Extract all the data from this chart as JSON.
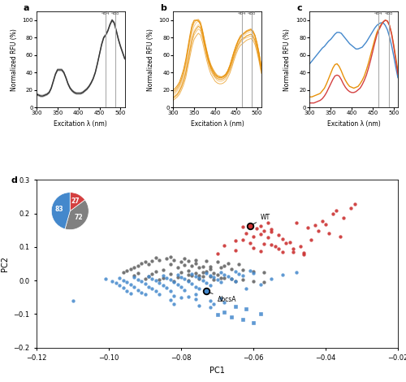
{
  "panel_a": {
    "x": [
      300,
      305,
      310,
      315,
      320,
      325,
      330,
      335,
      340,
      345,
      350,
      355,
      360,
      365,
      370,
      375,
      380,
      385,
      390,
      395,
      400,
      405,
      410,
      415,
      420,
      425,
      430,
      435,
      440,
      445,
      450,
      455,
      460,
      465,
      470,
      475,
      480,
      485,
      490,
      495,
      500,
      505,
      510
    ],
    "y_mean": [
      15,
      14,
      13,
      13,
      14,
      15,
      17,
      22,
      30,
      38,
      43,
      43,
      43,
      40,
      34,
      27,
      22,
      19,
      17,
      16,
      16,
      16,
      17,
      19,
      21,
      24,
      28,
      33,
      40,
      50,
      61,
      72,
      80,
      83,
      88,
      95,
      100,
      97,
      88,
      78,
      70,
      63,
      56
    ],
    "y_rep1": [
      14,
      13,
      12,
      12,
      13,
      14,
      16,
      21,
      29,
      37,
      42,
      42,
      42,
      39,
      33,
      26,
      21,
      18,
      16,
      15,
      15,
      15,
      16,
      18,
      20,
      23,
      27,
      32,
      39,
      49,
      60,
      71,
      79,
      82,
      87,
      94,
      99,
      96,
      87,
      77,
      69,
      62,
      55
    ],
    "y_rep2": [
      16,
      15,
      14,
      14,
      15,
      16,
      18,
      23,
      31,
      39,
      44,
      44,
      44,
      41,
      35,
      28,
      23,
      20,
      18,
      17,
      17,
      17,
      18,
      20,
      22,
      25,
      29,
      34,
      41,
      51,
      62,
      73,
      81,
      84,
      89,
      96,
      101,
      98,
      89,
      79,
      71,
      64,
      57
    ],
    "vline1": 464,
    "vline2": 488,
    "color": "#333333",
    "xlabel": "Excitation λ (nm)",
    "ylabel": "Normalized RFU (%)",
    "label": "a"
  },
  "panel_b": {
    "x": [
      300,
      305,
      310,
      315,
      320,
      325,
      330,
      335,
      340,
      345,
      350,
      355,
      360,
      365,
      370,
      375,
      380,
      385,
      390,
      395,
      400,
      405,
      410,
      415,
      420,
      425,
      430,
      435,
      440,
      445,
      450,
      455,
      460,
      465,
      470,
      475,
      480,
      485,
      490,
      495,
      500,
      505,
      510
    ],
    "curves": [
      [
        12,
        14,
        16,
        20,
        26,
        33,
        42,
        55,
        68,
        80,
        88,
        92,
        95,
        92,
        84,
        73,
        62,
        53,
        46,
        41,
        37,
        34,
        33,
        33,
        34,
        36,
        40,
        45,
        52,
        60,
        67,
        73,
        77,
        79,
        80,
        82,
        83,
        84,
        82,
        77,
        68,
        56,
        42
      ],
      [
        14,
        16,
        19,
        23,
        29,
        37,
        47,
        61,
        74,
        86,
        93,
        97,
        99,
        96,
        87,
        75,
        64,
        55,
        47,
        42,
        38,
        36,
        34,
        34,
        35,
        37,
        41,
        47,
        54,
        62,
        69,
        75,
        79,
        81,
        83,
        85,
        86,
        87,
        85,
        80,
        71,
        59,
        45
      ],
      [
        10,
        12,
        14,
        18,
        23,
        30,
        38,
        50,
        63,
        75,
        83,
        87,
        90,
        88,
        80,
        69,
        58,
        49,
        42,
        37,
        34,
        31,
        30,
        30,
        31,
        33,
        37,
        42,
        49,
        57,
        64,
        70,
        74,
        77,
        79,
        80,
        81,
        82,
        80,
        75,
        66,
        55,
        41
      ],
      [
        16,
        18,
        21,
        25,
        31,
        39,
        50,
        64,
        78,
        90,
        97,
        100,
        101,
        98,
        89,
        77,
        66,
        56,
        49,
        44,
        40,
        37,
        36,
        35,
        36,
        38,
        42,
        48,
        56,
        64,
        71,
        77,
        81,
        84,
        85,
        87,
        88,
        89,
        87,
        82,
        73,
        61,
        47
      ],
      [
        8,
        10,
        12,
        15,
        20,
        26,
        34,
        46,
        58,
        70,
        78,
        82,
        85,
        83,
        75,
        64,
        54,
        45,
        38,
        34,
        30,
        28,
        27,
        27,
        28,
        30,
        34,
        39,
        46,
        54,
        61,
        67,
        71,
        73,
        75,
        77,
        78,
        79,
        77,
        72,
        63,
        52,
        39
      ],
      [
        18,
        20,
        23,
        27,
        33,
        41,
        52,
        66,
        80,
        92,
        99,
        100,
        100,
        97,
        88,
        76,
        65,
        55,
        48,
        43,
        39,
        36,
        35,
        35,
        36,
        38,
        42,
        48,
        56,
        64,
        71,
        77,
        82,
        84,
        86,
        88,
        89,
        90,
        88,
        83,
        74,
        62,
        48
      ],
      [
        11,
        13,
        15,
        19,
        24,
        31,
        40,
        53,
        66,
        78,
        86,
        90,
        93,
        91,
        82,
        71,
        60,
        51,
        44,
        39,
        35,
        33,
        32,
        32,
        33,
        35,
        39,
        44,
        51,
        59,
        66,
        72,
        76,
        79,
        80,
        82,
        83,
        84,
        82,
        77,
        68,
        56,
        43
      ],
      [
        20,
        22,
        25,
        29,
        36,
        44,
        55,
        69,
        83,
        95,
        100,
        100,
        99,
        95,
        86,
        74,
        63,
        53,
        46,
        41,
        37,
        35,
        34,
        34,
        35,
        37,
        41,
        47,
        55,
        63,
        70,
        76,
        80,
        83,
        85,
        87,
        88,
        89,
        87,
        82,
        73,
        61,
        47
      ]
    ],
    "vline1": 464,
    "vline2": 488,
    "color": "#E8920A",
    "xlabel": "Excitation λ (nm)",
    "ylabel": "Normalized RFU (%)",
    "label": "b"
  },
  "panel_c": {
    "x": [
      300,
      305,
      310,
      315,
      320,
      325,
      330,
      335,
      340,
      345,
      350,
      355,
      360,
      365,
      370,
      375,
      380,
      385,
      390,
      395,
      400,
      405,
      410,
      415,
      420,
      425,
      430,
      435,
      440,
      445,
      450,
      455,
      460,
      465,
      470,
      475,
      480,
      485,
      490,
      495,
      500,
      505,
      510
    ],
    "y_red": [
      5,
      5,
      5,
      6,
      7,
      8,
      10,
      13,
      17,
      22,
      27,
      32,
      36,
      37,
      36,
      32,
      27,
      23,
      20,
      18,
      17,
      17,
      18,
      20,
      22,
      26,
      31,
      37,
      45,
      54,
      64,
      74,
      83,
      89,
      94,
      98,
      100,
      99,
      94,
      84,
      70,
      54,
      38
    ],
    "y_blue": [
      50,
      53,
      56,
      59,
      62,
      65,
      68,
      70,
      73,
      76,
      78,
      81,
      84,
      86,
      86,
      85,
      82,
      79,
      76,
      73,
      71,
      69,
      67,
      67,
      68,
      69,
      72,
      75,
      79,
      83,
      87,
      91,
      94,
      96,
      97,
      97,
      94,
      89,
      81,
      71,
      59,
      46,
      34
    ],
    "y_orange": [
      12,
      12,
      13,
      14,
      15,
      16,
      19,
      22,
      27,
      33,
      39,
      45,
      49,
      50,
      47,
      42,
      36,
      31,
      27,
      24,
      23,
      22,
      23,
      24,
      27,
      31,
      36,
      43,
      51,
      60,
      69,
      78,
      86,
      91,
      95,
      98,
      100,
      99,
      94,
      85,
      72,
      57,
      42
    ],
    "vline1": 464,
    "vline2": 488,
    "color_red": "#D44040",
    "color_blue": "#4488CC",
    "color_orange": "#E8920A",
    "xlabel": "Excitation λ (nm)",
    "ylabel": "Normalized RFU (%)",
    "label": "c"
  },
  "panel_d": {
    "red_circles": [
      [
        -0.063,
        0.16
      ],
      [
        -0.059,
        0.155
      ],
      [
        -0.057,
        0.148
      ],
      [
        -0.055,
        0.145
      ],
      [
        -0.062,
        0.14
      ],
      [
        -0.058,
        0.138
      ],
      [
        -0.053,
        0.135
      ],
      [
        -0.06,
        0.13
      ],
      [
        -0.056,
        0.128
      ],
      [
        -0.052,
        0.125
      ],
      [
        -0.063,
        0.122
      ],
      [
        -0.065,
        0.118
      ],
      [
        -0.05,
        0.115
      ],
      [
        -0.061,
        0.112
      ],
      [
        -0.057,
        0.11
      ],
      [
        -0.055,
        0.107
      ],
      [
        -0.068,
        0.105
      ],
      [
        -0.054,
        0.102
      ],
      [
        -0.06,
        0.098
      ],
      [
        -0.049,
        0.095
      ],
      [
        -0.065,
        0.09
      ],
      [
        -0.058,
        0.088
      ],
      [
        -0.052,
        0.085
      ],
      [
        -0.046,
        0.082
      ],
      [
        -0.07,
        0.08
      ],
      [
        -0.043,
        0.165
      ],
      [
        -0.038,
        0.2
      ],
      [
        -0.037,
        0.208
      ],
      [
        -0.032,
        0.228
      ],
      [
        -0.041,
        0.178
      ],
      [
        -0.035,
        0.188
      ],
      [
        -0.048,
        0.172
      ],
      [
        -0.056,
        0.172
      ],
      [
        -0.045,
        0.157
      ],
      [
        -0.042,
        0.147
      ],
      [
        -0.039,
        0.14
      ],
      [
        -0.036,
        0.13
      ],
      [
        -0.044,
        0.122
      ],
      [
        -0.051,
        0.112
      ],
      [
        -0.047,
        0.102
      ],
      [
        -0.053,
        0.094
      ],
      [
        -0.046,
        0.077
      ],
      [
        -0.049,
        0.084
      ],
      [
        -0.04,
        0.167
      ],
      [
        -0.033,
        0.217
      ],
      [
        -0.058,
        0.162
      ],
      [
        -0.055,
        0.154
      ]
    ],
    "gray_circles": [
      [
        -0.082,
        0.06
      ],
      [
        -0.078,
        0.058
      ],
      [
        -0.08,
        0.055
      ],
      [
        -0.076,
        0.052
      ],
      [
        -0.083,
        0.048
      ],
      [
        -0.079,
        0.046
      ],
      [
        -0.077,
        0.043
      ],
      [
        -0.074,
        0.042
      ],
      [
        -0.081,
        0.04
      ],
      [
        -0.075,
        0.038
      ],
      [
        -0.072,
        0.035
      ],
      [
        -0.085,
        0.033
      ],
      [
        -0.078,
        0.03
      ],
      [
        -0.073,
        0.028
      ],
      [
        -0.08,
        0.025
      ],
      [
        -0.076,
        0.022
      ],
      [
        -0.083,
        0.02
      ],
      [
        -0.07,
        0.018
      ],
      [
        -0.077,
        0.015
      ],
      [
        -0.074,
        0.012
      ],
      [
        -0.081,
        0.01
      ],
      [
        -0.068,
        0.008
      ],
      [
        -0.075,
        0.005
      ],
      [
        -0.071,
        0.002
      ],
      [
        -0.078,
        0.0
      ],
      [
        -0.065,
        -0.002
      ],
      [
        -0.086,
        0.062
      ],
      [
        -0.088,
        0.058
      ],
      [
        -0.084,
        0.065
      ],
      [
        -0.09,
        0.055
      ],
      [
        -0.091,
        0.05
      ],
      [
        -0.092,
        0.045
      ],
      [
        -0.089,
        0.048
      ],
      [
        -0.093,
        0.04
      ],
      [
        -0.094,
        0.035
      ],
      [
        -0.095,
        0.03
      ],
      [
        -0.087,
        0.028
      ],
      [
        -0.096,
        0.025
      ],
      [
        -0.092,
        0.022
      ],
      [
        -0.088,
        0.02
      ],
      [
        -0.093,
        0.015
      ],
      [
        -0.089,
        0.012
      ],
      [
        -0.085,
        0.008
      ],
      [
        -0.09,
        0.005
      ],
      [
        -0.086,
        0.002
      ],
      [
        -0.082,
        -0.002
      ],
      [
        -0.087,
        0.068
      ],
      [
        -0.083,
        0.07
      ],
      [
        -0.079,
        0.065
      ],
      [
        -0.076,
        0.06
      ],
      [
        -0.073,
        0.058
      ],
      [
        -0.07,
        0.055
      ],
      [
        -0.067,
        0.052
      ],
      [
        -0.064,
        0.048
      ],
      [
        -0.068,
        0.045
      ],
      [
        -0.072,
        0.042
      ],
      [
        -0.069,
        0.038
      ],
      [
        -0.066,
        0.035
      ],
      [
        -0.063,
        0.032
      ],
      [
        -0.06,
        0.028
      ],
      [
        -0.057,
        0.025
      ],
      [
        -0.074,
        0.025
      ],
      [
        -0.071,
        0.022
      ],
      [
        -0.078,
        0.018
      ],
      [
        -0.075,
        0.015
      ],
      [
        -0.072,
        0.012
      ],
      [
        -0.069,
        0.008
      ],
      [
        -0.066,
        0.005
      ],
      [
        -0.063,
        0.002
      ],
      [
        -0.06,
        -0.002
      ],
      [
        -0.057,
        -0.005
      ]
    ],
    "blue_circles": [
      [
        -0.09,
        -0.04
      ],
      [
        -0.086,
        -0.042
      ],
      [
        -0.082,
        -0.045
      ],
      [
        -0.078,
        -0.048
      ],
      [
        -0.094,
        -0.038
      ],
      [
        -0.091,
        -0.035
      ],
      [
        -0.087,
        -0.032
      ],
      [
        -0.083,
        -0.03
      ],
      [
        -0.079,
        -0.028
      ],
      [
        -0.075,
        -0.025
      ],
      [
        -0.095,
        -0.03
      ],
      [
        -0.092,
        -0.028
      ],
      [
        -0.088,
        -0.025
      ],
      [
        -0.084,
        -0.022
      ],
      [
        -0.08,
        -0.02
      ],
      [
        -0.076,
        -0.018
      ],
      [
        -0.072,
        -0.015
      ],
      [
        -0.096,
        -0.022
      ],
      [
        -0.093,
        -0.02
      ],
      [
        -0.089,
        -0.018
      ],
      [
        -0.085,
        -0.015
      ],
      [
        -0.081,
        -0.012
      ],
      [
        -0.077,
        -0.01
      ],
      [
        -0.073,
        -0.008
      ],
      [
        -0.069,
        -0.005
      ],
      [
        -0.065,
        -0.002
      ],
      [
        -0.097,
        -0.015
      ],
      [
        -0.094,
        -0.012
      ],
      [
        -0.09,
        -0.01
      ],
      [
        -0.086,
        -0.008
      ],
      [
        -0.082,
        -0.005
      ],
      [
        -0.078,
        -0.002
      ],
      [
        -0.074,
        0.0
      ],
      [
        -0.07,
        0.002
      ],
      [
        -0.066,
        0.005
      ],
      [
        -0.098,
        -0.008
      ],
      [
        -0.095,
        -0.005
      ],
      [
        -0.091,
        -0.002
      ],
      [
        -0.087,
        0.0
      ],
      [
        -0.083,
        0.002
      ],
      [
        -0.079,
        0.005
      ],
      [
        -0.075,
        0.008
      ],
      [
        -0.071,
        0.01
      ],
      [
        -0.067,
        0.012
      ],
      [
        -0.063,
        0.015
      ],
      [
        -0.099,
        -0.002
      ],
      [
        -0.096,
        0.0
      ],
      [
        -0.092,
        0.002
      ],
      [
        -0.088,
        0.005
      ],
      [
        -0.084,
        0.008
      ],
      [
        -0.08,
        0.01
      ],
      [
        -0.076,
        0.012
      ],
      [
        -0.072,
        0.015
      ],
      [
        -0.068,
        0.018
      ],
      [
        -0.064,
        0.02
      ],
      [
        -0.06,
        0.022
      ],
      [
        -0.068,
        -0.065
      ],
      [
        -0.072,
        -0.06
      ],
      [
        -0.069,
        -0.052
      ],
      [
        -0.072,
        -0.08
      ],
      [
        -0.075,
        -0.075
      ],
      [
        -0.071,
        -0.07
      ],
      [
        -0.076,
        -0.055
      ],
      [
        -0.08,
        -0.05
      ],
      [
        -0.076,
        -0.04
      ],
      [
        -0.083,
        -0.058
      ],
      [
        -0.082,
        -0.07
      ],
      [
        -0.11,
        -0.06
      ],
      [
        -0.062,
        -0.025
      ],
      [
        -0.058,
        -0.012
      ],
      [
        -0.055,
        0.005
      ],
      [
        -0.052,
        0.018
      ],
      [
        -0.048,
        0.025
      ],
      [
        -0.101,
        0.005
      ],
      [
        -0.097,
        0.008
      ],
      [
        -0.093,
        0.01
      ],
      [
        -0.089,
        0.012
      ],
      [
        -0.085,
        0.015
      ],
      [
        -0.081,
        0.018
      ],
      [
        -0.077,
        0.02
      ],
      [
        -0.073,
        0.022
      ],
      [
        -0.069,
        0.025
      ],
      [
        -0.065,
        0.028
      ],
      [
        -0.061,
        0.03
      ]
    ],
    "blue_squares": [
      [
        -0.062,
        -0.085
      ],
      [
        -0.065,
        -0.078
      ],
      [
        -0.068,
        -0.095
      ],
      [
        -0.07,
        -0.102
      ],
      [
        -0.066,
        -0.108
      ],
      [
        -0.063,
        -0.115
      ],
      [
        -0.06,
        -0.125
      ],
      [
        -0.058,
        -0.098
      ]
    ],
    "wt_marker": [
      -0.061,
      0.163
    ],
    "bcsa_marker": [
      -0.073,
      -0.032
    ],
    "xlabel": "PC1",
    "ylabel": "PC2",
    "xlim": [
      -0.12,
      -0.02
    ],
    "ylim": [
      -0.2,
      0.3
    ],
    "xticks": [
      -0.12,
      -0.1,
      -0.08,
      -0.06,
      -0.04,
      -0.02
    ],
    "yticks": [
      -0.2,
      -0.1,
      0.0,
      0.1,
      0.2,
      0.3
    ],
    "label": "d",
    "pie_values": [
      27,
      72,
      83
    ],
    "pie_colors": [
      "#D44040",
      "#808080",
      "#4488CC"
    ],
    "pie_labels": [
      "27",
      "72",
      "83"
    ],
    "red_color": "#CC3333",
    "gray_color": "#666666",
    "blue_color": "#4488CC"
  }
}
